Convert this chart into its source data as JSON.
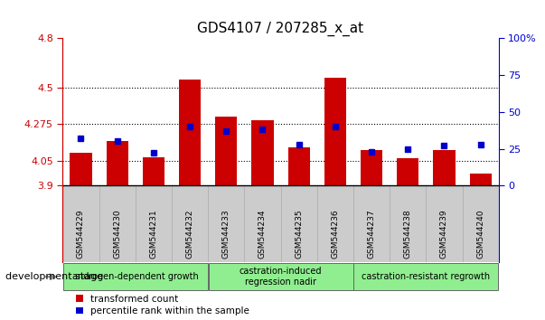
{
  "title": "GDS4107 / 207285_x_at",
  "samples": [
    "GSM544229",
    "GSM544230",
    "GSM544231",
    "GSM544232",
    "GSM544233",
    "GSM544234",
    "GSM544235",
    "GSM544236",
    "GSM544237",
    "GSM544238",
    "GSM544239",
    "GSM544240"
  ],
  "red_values": [
    4.1,
    4.175,
    4.075,
    4.55,
    4.32,
    4.3,
    4.135,
    4.56,
    4.115,
    4.07,
    4.12,
    3.975
  ],
  "blue_values": [
    32,
    30,
    22,
    40,
    37,
    38,
    28,
    40,
    23,
    25,
    27,
    28
  ],
  "y_min": 3.9,
  "y_max": 4.8,
  "y_ticks": [
    3.9,
    4.05,
    4.275,
    4.5,
    4.8
  ],
  "y_tick_labels": [
    "3.9",
    "4.05",
    "4.275",
    "4.5",
    "4.8"
  ],
  "y2_ticks": [
    0,
    25,
    50,
    75,
    100
  ],
  "y2_tick_labels": [
    "0",
    "25",
    "50",
    "75",
    "100%"
  ],
  "bar_color": "#cc0000",
  "blue_color": "#0000cc",
  "axis_color_left": "#cc0000",
  "axis_color_right": "#0000cc",
  "bar_width": 0.6,
  "green_color": "#90ee90",
  "gray_color": "#cccccc",
  "group_labels": [
    "androgen-dependent growth",
    "castration-induced\nregression nadir",
    "castration-resistant regrowth"
  ],
  "group_starts": [
    0,
    4,
    8
  ],
  "group_ends": [
    3,
    7,
    11
  ],
  "dev_stage_text": "development stage",
  "legend_labels": [
    "transformed count",
    "percentile rank within the sample"
  ]
}
